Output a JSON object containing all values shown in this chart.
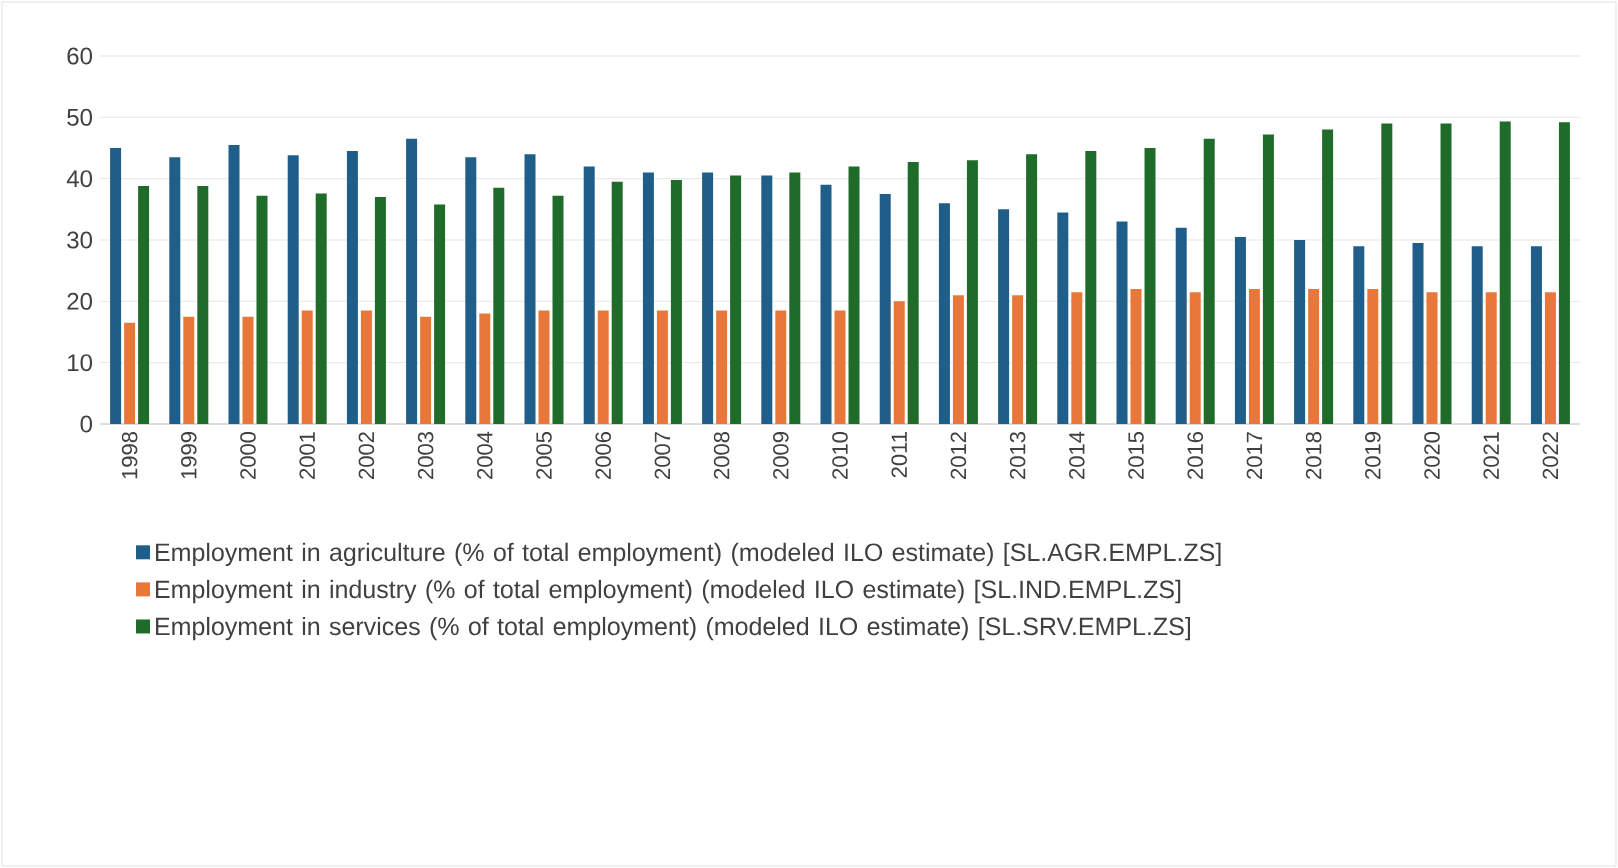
{
  "chart_data": {
    "type": "bar",
    "categories": [
      "1998",
      "1999",
      "2000",
      "2001",
      "2002",
      "2003",
      "2004",
      "2005",
      "2006",
      "2007",
      "2008",
      "2009",
      "2010",
      "2011",
      "2012",
      "2013",
      "2014",
      "2015",
      "2016",
      "2017",
      "2018",
      "2019",
      "2020",
      "2021",
      "2022"
    ],
    "series": [
      {
        "name": "Employment in agriculture (% of total employment) (modeled ILO estimate) [SL.AGR.EMPL.ZS]",
        "color": "#1f5e88",
        "values": [
          45,
          43.5,
          45.5,
          43.8,
          44.5,
          46.5,
          43.5,
          44,
          42,
          41,
          41,
          40.5,
          39,
          37.5,
          36,
          35,
          34.5,
          33,
          32,
          30.5,
          30,
          29,
          29.5,
          29,
          29
        ]
      },
      {
        "name": "Employment in industry (% of total employment) (modeled ILO estimate) [SL.IND.EMPL.ZS]",
        "color": "#e8773a",
        "values": [
          16.5,
          17.5,
          17.5,
          18.5,
          18.5,
          17.5,
          18,
          18.5,
          18.5,
          18.5,
          18.5,
          18.5,
          18.5,
          20,
          21,
          21,
          21.5,
          22,
          21.5,
          22,
          22,
          22,
          21.5,
          21.5,
          21.5
        ]
      },
      {
        "name": "Employment in services (% of total employment) (modeled ILO estimate) [SL.SRV.EMPL.ZS]",
        "color": "#1e6b2a",
        "values": [
          38.8,
          38.8,
          37.2,
          37.6,
          37,
          35.8,
          38.5,
          37.2,
          39.5,
          39.8,
          40.5,
          41,
          42,
          42.7,
          43,
          44,
          44.5,
          45,
          46.5,
          47.2,
          48,
          49,
          49,
          49.3,
          49.2
        ]
      }
    ],
    "ylim": [
      0,
      60
    ],
    "yticks": [
      0,
      10,
      20,
      30,
      40,
      50,
      60
    ],
    "grid": "y",
    "legend": "bottom"
  }
}
